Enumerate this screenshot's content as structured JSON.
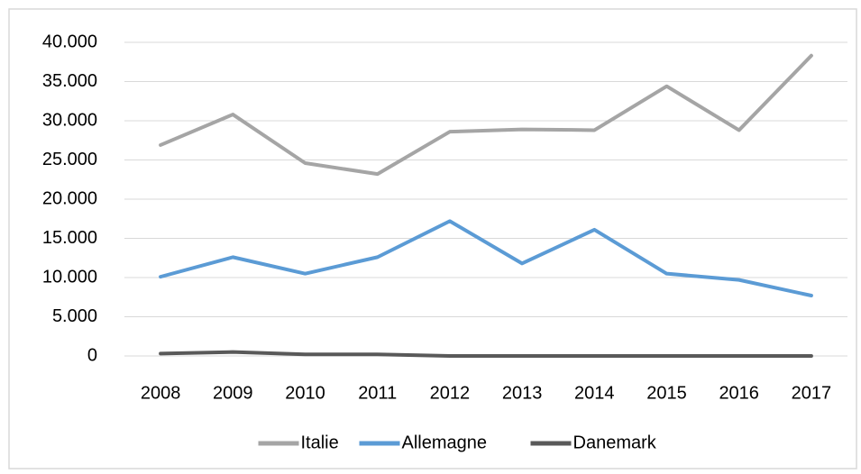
{
  "chart_data": {
    "type": "line",
    "categories": [
      "2008",
      "2009",
      "2010",
      "2011",
      "2012",
      "2013",
      "2014",
      "2015",
      "2016",
      "2017"
    ],
    "series": [
      {
        "name": "Italie",
        "color": "#a5a5a5",
        "values": [
          26900,
          30800,
          24600,
          23200,
          28600,
          28900,
          28800,
          34400,
          28800,
          38300
        ]
      },
      {
        "name": "Allemagne",
        "color": "#5b9bd5",
        "values": [
          10100,
          12600,
          10500,
          12600,
          17200,
          11800,
          16100,
          10500,
          9700,
          7700
        ]
      },
      {
        "name": "Danemark",
        "color": "#595959",
        "values": [
          300,
          500,
          200,
          200,
          0,
          0,
          0,
          0,
          0,
          0
        ]
      }
    ],
    "ylim": [
      0,
      40000
    ],
    "yticks": [
      0,
      {
        "value": 5000,
        "label": "5.000"
      },
      {
        "value": 10000,
        "label": "10.000"
      },
      {
        "value": 15000,
        "label": "15.000"
      },
      {
        "value": 20000,
        "label": "20.000"
      },
      {
        "value": 25000,
        "label": "25.000"
      },
      {
        "value": 30000,
        "label": "30.000"
      },
      {
        "value": 35000,
        "label": "35.000"
      },
      {
        "value": 40000,
        "label": "40.000"
      }
    ],
    "grid": true,
    "legend": "bottom"
  }
}
